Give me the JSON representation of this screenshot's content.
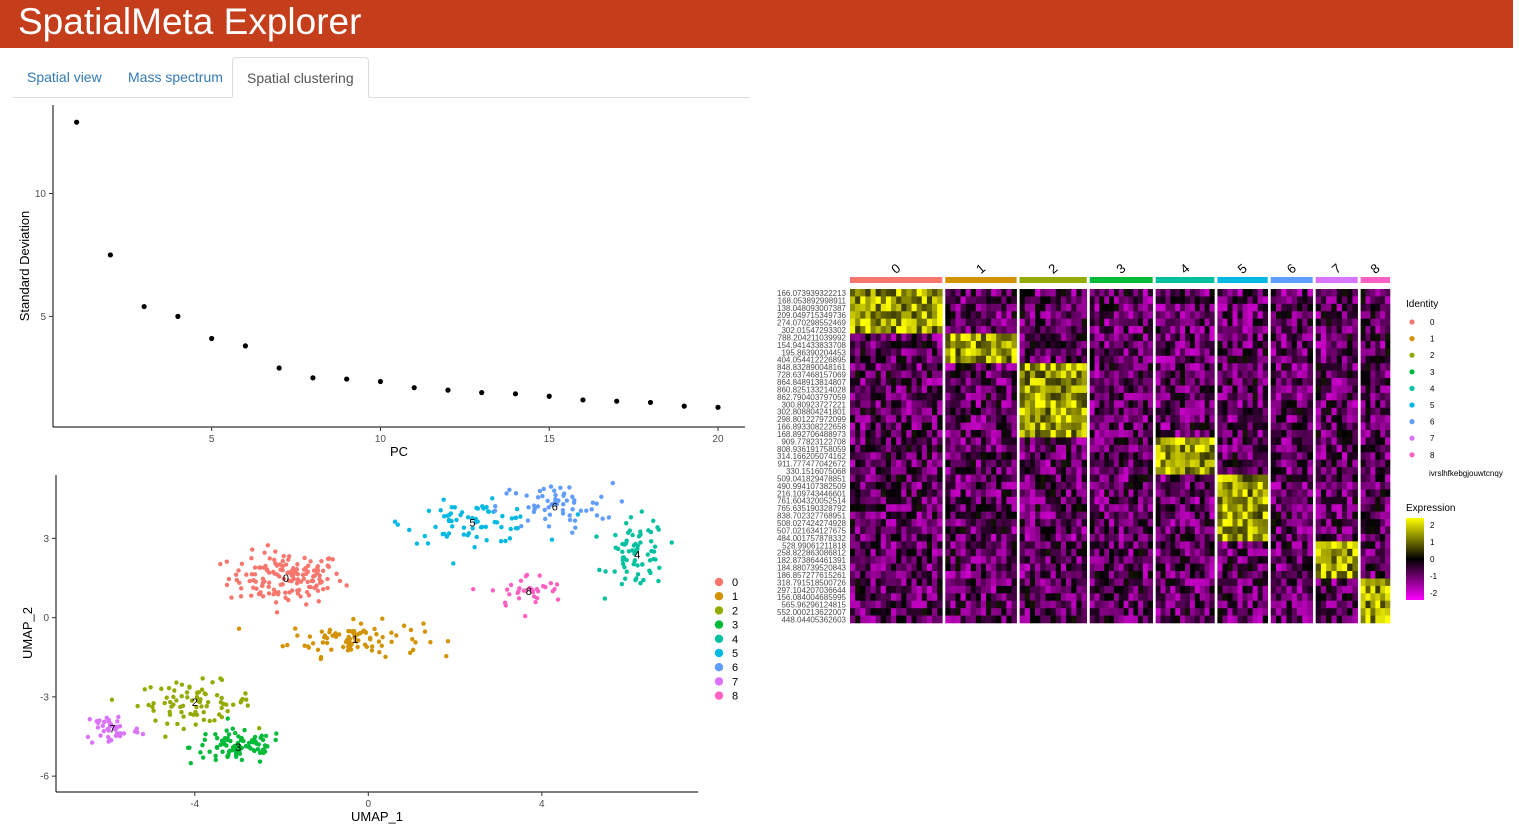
{
  "app": {
    "title": "SpatialMeta Explorer"
  },
  "tabs": [
    {
      "label": "Spatial view",
      "active": false
    },
    {
      "label": "Mass spectrum",
      "active": false
    },
    {
      "label": "Spatial clustering",
      "active": true
    }
  ],
  "colors": {
    "header": "#c43e1c",
    "clusters": [
      "#f8766d",
      "#d39200",
      "#93aa00",
      "#00ba38",
      "#00c19f",
      "#00b9e3",
      "#619cff",
      "#db72fb",
      "#ff61c3"
    ],
    "heat_low": "#ff00ff",
    "heat_mid": "#000000",
    "heat_high": "#ffff00"
  },
  "chart_data": [
    {
      "type": "scatter",
      "name": "elbow",
      "xlabel": "PC",
      "ylabel": "Standard Deviation",
      "xlim": [
        0.3,
        20.8
      ],
      "ylim": [
        0.5,
        13.6
      ],
      "xticks": [
        5,
        10,
        15,
        20
      ],
      "yticks": [
        5,
        10
      ],
      "x": [
        1,
        2,
        3,
        4,
        5,
        6,
        7,
        8,
        9,
        10,
        11,
        12,
        13,
        14,
        15,
        16,
        17,
        18,
        19,
        20
      ],
      "y": [
        12.9,
        7.5,
        5.4,
        5.0,
        4.1,
        3.8,
        2.9,
        2.5,
        2.45,
        2.35,
        2.1,
        2.0,
        1.9,
        1.85,
        1.75,
        1.6,
        1.55,
        1.5,
        1.35,
        1.3
      ]
    },
    {
      "type": "scatter",
      "name": "umap",
      "xlabel": "UMAP_1",
      "ylabel": "UMAP_2",
      "xlim": [
        -7.2,
        7.6
      ],
      "ylim": [
        -6.6,
        5.4
      ],
      "xticks": [
        -4,
        0,
        4
      ],
      "yticks": [
        -6,
        -3,
        0,
        3
      ],
      "legend": {
        "position": "right",
        "labels": [
          "0",
          "1",
          "2",
          "3",
          "4",
          "5",
          "6",
          "7",
          "8"
        ]
      },
      "clusters": [
        {
          "label": "0",
          "center": [
            -1.9,
            1.5
          ],
          "spread": [
            1.2,
            0.9
          ],
          "count": 150
        },
        {
          "label": "1",
          "center": [
            -0.3,
            -0.8
          ],
          "spread": [
            1.4,
            0.6
          ],
          "count": 90
        },
        {
          "label": "2",
          "center": [
            -4.0,
            -3.2
          ],
          "spread": [
            1.2,
            0.7
          ],
          "count": 80
        },
        {
          "label": "3",
          "center": [
            -3.0,
            -4.9
          ],
          "spread": [
            1.0,
            0.6
          ],
          "count": 90
        },
        {
          "label": "4",
          "center": [
            6.2,
            2.4
          ],
          "spread": [
            0.6,
            1.2
          ],
          "count": 70
        },
        {
          "label": "5",
          "center": [
            2.4,
            3.6
          ],
          "spread": [
            1.4,
            0.7
          ],
          "count": 70
        },
        {
          "label": "6",
          "center": [
            4.3,
            4.2
          ],
          "spread": [
            1.2,
            0.8
          ],
          "count": 60
        },
        {
          "label": "7",
          "center": [
            -5.9,
            -4.2
          ],
          "spread": [
            0.6,
            0.6
          ],
          "count": 45
        },
        {
          "label": "8",
          "center": [
            3.7,
            1.0
          ],
          "spread": [
            0.8,
            0.6
          ],
          "count": 35
        }
      ]
    },
    {
      "type": "heatmap",
      "name": "markers",
      "columns": [
        "0",
        "1",
        "2",
        "3",
        "4",
        "5",
        "6",
        "7",
        "8"
      ],
      "column_widths": [
        22,
        17,
        16,
        15,
        14,
        12,
        10,
        10,
        7
      ],
      "row_labels": [
        "166.073939322213",
        "168.053892998911",
        "138.048093007387",
        "209.049715349736",
        "274.070298552469",
        "302.01547293302",
        "788.204211039992",
        "154.941433833708",
        "195.86390204453",
        "404.054412226895",
        "848.832890048161",
        "728.637468157069",
        "864.848913814807",
        "860.825133214028",
        "862.790403797059",
        "300.80923727221",
        "302.808804241801",
        "298.801227972099",
        "166.893308222658",
        "168.892706488973",
        "909.77823122708",
        "808.936191758059",
        "314.166205074162",
        "911.777477042672",
        "330.1516075068",
        "509.041829478851",
        "490.994107382509",
        "216.109743446601",
        "761.604320052514",
        "765.635190328792",
        "838.702327768951",
        "508.027424274928",
        "507.021634127675",
        "484.001757878332",
        "528.99061211818",
        "258.822863086812",
        "182.873864461391",
        "184.880739520843",
        "186.857277615261",
        "318.791518500726",
        "297.104207036644",
        "156.084004685995",
        "565.96296124815",
        "552.000213622007",
        "448.04405362603"
      ],
      "row_groups": [
        6,
        4,
        10,
        5,
        9,
        5,
        6
      ],
      "legend_identity": {
        "title": "Identity",
        "labels": [
          "0",
          "1",
          "2",
          "3",
          "4",
          "5",
          "6",
          "7",
          "8"
        ],
        "caption": "ivrslhfkebgjouwtcnqy"
      },
      "legend_expression": {
        "title": "Expression",
        "ticks": [
          "2",
          "1",
          "0",
          "-1",
          "-2"
        ]
      }
    }
  ]
}
